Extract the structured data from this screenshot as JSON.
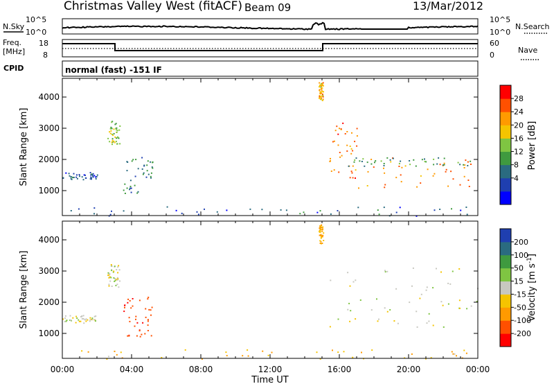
{
  "header": {
    "station": "Christmas Valley West (fitACF)",
    "beam": "Beam 09",
    "date": "13/Mar/2012"
  },
  "top_panels": {
    "nsky_label": "N.Sky",
    "nsearch_label": "N.Search",
    "noise_ticks": [
      "10^5",
      "10^0"
    ],
    "freq_label_1": "Freq.",
    "freq_label_2": "[MHz]",
    "freq_ticks": [
      "18",
      "8"
    ],
    "nave_label": "Nave",
    "nave_ticks": [
      "60",
      "0"
    ],
    "cpid_label": "CPID",
    "cpid_text": "normal (fast) -151 IF"
  },
  "chart_data": [
    {
      "type": "heatmap",
      "name": "Power",
      "ylabel": "Slant Range [km]",
      "ylim": [
        200,
        4600
      ],
      "yticks": [
        1000,
        2000,
        3000,
        4000
      ],
      "colorbar": {
        "label": "Power [dB]",
        "ticks": [
          "28",
          "24",
          "20",
          "16",
          "12",
          "8",
          "4"
        ],
        "colors": [
          "#ff0000",
          "#ff5000",
          "#ff9a00",
          "#f5c400",
          "#7fc542",
          "#3f9a3f",
          "#2a6b80",
          "#1f3fb0",
          "#0000ff"
        ]
      },
      "regions": [
        {
          "t0": 0.0,
          "t1": 2.0,
          "r0": 1350,
          "r1": 1600,
          "level": 6
        },
        {
          "t0": 2.6,
          "t1": 3.3,
          "r0": 2500,
          "r1": 3250,
          "level": 15
        },
        {
          "t0": 3.5,
          "t1": 5.2,
          "r0": 900,
          "r1": 2200,
          "level": 9
        },
        {
          "t0": 14.8,
          "t1": 15.05,
          "r0": 3900,
          "r1": 4500,
          "level": 22
        },
        {
          "t0": 15.4,
          "t1": 17.0,
          "r0": 1400,
          "r1": 3200,
          "level": 26
        },
        {
          "t0": 17.0,
          "t1": 24.0,
          "r0": 1100,
          "r1": 2100,
          "level": 25
        },
        {
          "t0": 16.5,
          "t1": 24.0,
          "r0": 1800,
          "r1": 2100,
          "level": 12
        },
        {
          "t0": 0.0,
          "t1": 24.0,
          "r0": 200,
          "r1": 500,
          "level": 6
        }
      ]
    },
    {
      "type": "heatmap",
      "name": "Velocity",
      "ylabel": "Slant Range [km]",
      "ylim": [
        200,
        4600
      ],
      "yticks": [
        1000,
        2000,
        3000,
        4000
      ],
      "colorbar": {
        "label": "Velocity [m s-1]",
        "label_main": "Velocity [m s",
        "label_sup": "-1",
        "label_end": "]",
        "ticks": [
          "200",
          "100",
          "50",
          "15",
          "-15",
          "-50",
          "-100",
          "-200"
        ],
        "colors": [
          "#1f3fb0",
          "#2a6b80",
          "#3f9a3f",
          "#7fc542",
          "#c8c8c0",
          "#f5c400",
          "#ff9a00",
          "#ff5000",
          "#ff0000"
        ]
      },
      "regions": [
        {
          "t0": 0.0,
          "t1": 2.0,
          "r0": 1350,
          "r1": 1600,
          "level": 0
        },
        {
          "t0": 2.6,
          "t1": 3.3,
          "r0": 2500,
          "r1": 3250,
          "level": 0
        },
        {
          "t0": 3.5,
          "t1": 5.2,
          "r0": 900,
          "r1": 2200,
          "level": -180
        },
        {
          "t0": 14.8,
          "t1": 15.05,
          "r0": 3900,
          "r1": 4500,
          "level": -60
        },
        {
          "t0": 15.4,
          "t1": 24.0,
          "r0": 1200,
          "r1": 3200,
          "level": 0
        },
        {
          "t0": 0.0,
          "t1": 24.0,
          "r0": 200,
          "r1": 500,
          "level": -40
        }
      ]
    }
  ],
  "time_axis": {
    "xlabel": "Time UT",
    "ticks": [
      "00:00",
      "04:00",
      "08:00",
      "12:00",
      "16:00",
      "20:00",
      "00:00"
    ],
    "range_hours": [
      0,
      24
    ]
  }
}
